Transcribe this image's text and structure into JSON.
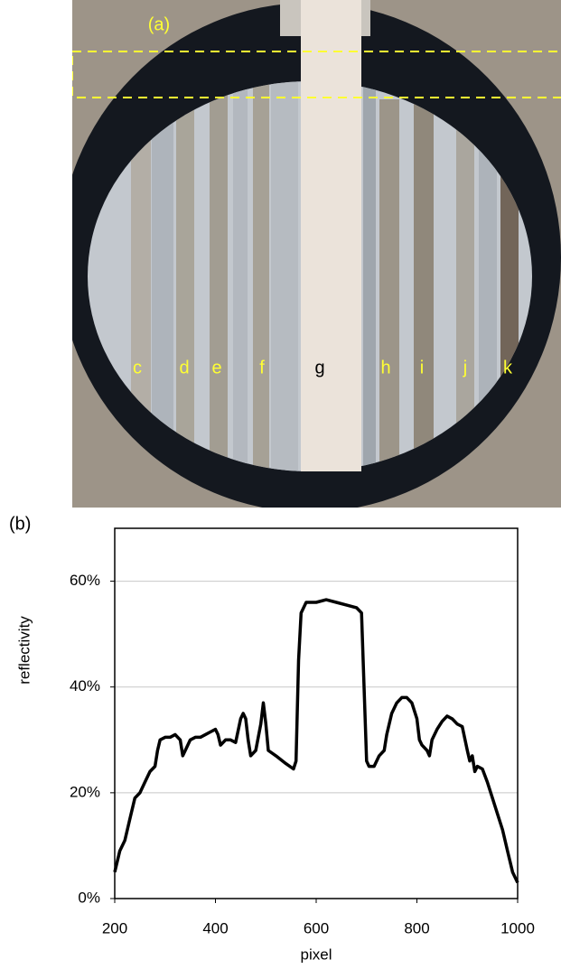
{
  "panel_a": {
    "label": "(a)",
    "stripe_labels": [
      "c",
      "d",
      "e",
      "f",
      "g",
      "h",
      "i",
      "j",
      "k"
    ]
  },
  "chart_data": {
    "type": "line",
    "panel_label": "(b)",
    "x_label": "pixel",
    "y_label": "reflectivity",
    "color": "#000000",
    "grid": true,
    "xlim": [
      200,
      1000
    ],
    "xticks": [
      200,
      400,
      600,
      800,
      1000
    ],
    "ylim": [
      0,
      70
    ],
    "yticks": [
      {
        "value": 0,
        "label": "0%"
      },
      {
        "value": 20,
        "label": "20%"
      },
      {
        "value": 40,
        "label": "40%"
      },
      {
        "value": 60,
        "label": "60%"
      }
    ],
    "x": [
      200,
      210,
      220,
      230,
      240,
      250,
      260,
      270,
      280,
      285,
      290,
      300,
      310,
      320,
      330,
      335,
      340,
      350,
      360,
      370,
      380,
      390,
      400,
      405,
      410,
      420,
      430,
      440,
      450,
      455,
      460,
      465,
      470,
      480,
      490,
      495,
      500,
      505,
      520,
      540,
      555,
      560,
      565,
      570,
      580,
      600,
      620,
      640,
      660,
      680,
      690,
      695,
      700,
      705,
      715,
      725,
      735,
      740,
      750,
      760,
      770,
      780,
      790,
      800,
      805,
      810,
      820,
      825,
      830,
      840,
      850,
      860,
      870,
      880,
      890,
      900,
      905,
      910,
      915,
      920,
      930,
      940,
      950,
      960,
      970,
      980,
      990,
      1000
    ],
    "values": [
      5,
      9,
      11,
      15,
      19,
      20,
      22,
      24,
      25,
      28,
      30,
      30.5,
      30.5,
      31,
      30,
      27,
      28,
      30,
      30.5,
      30.5,
      31,
      31.5,
      32,
      31,
      29,
      30,
      30,
      29.5,
      34,
      35,
      34,
      30,
      27,
      28,
      33,
      37,
      33,
      28,
      27,
      25.5,
      24.5,
      26,
      45,
      54,
      56,
      56,
      56.5,
      56,
      55.5,
      55,
      54,
      40,
      26,
      25,
      25,
      27,
      28,
      31,
      35,
      37,
      38,
      38,
      37,
      34,
      30,
      29,
      28,
      27,
      30,
      32,
      33.5,
      34.5,
      34,
      33,
      32.5,
      28,
      26,
      27,
      24,
      25,
      24.5,
      22,
      19,
      16,
      13,
      9,
      5,
      3
    ]
  }
}
